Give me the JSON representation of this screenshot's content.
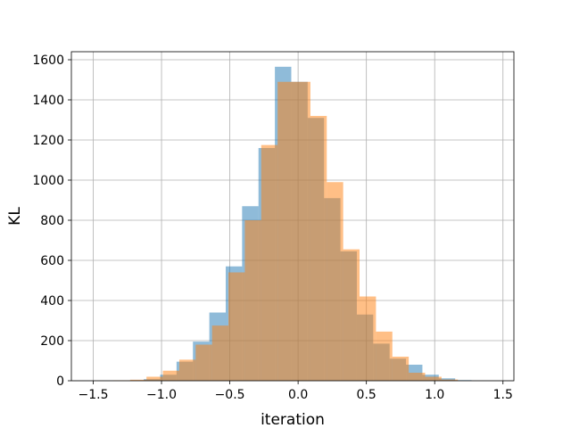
{
  "chart_data": {
    "type": "bar",
    "title": "",
    "xlabel": "iteration",
    "ylabel": "KL",
    "xlim": [
      -1.66,
      1.58
    ],
    "ylim": [
      0,
      1640
    ],
    "xticks": [
      -1.5,
      -1.0,
      -0.5,
      0.0,
      0.5,
      1.0,
      1.5
    ],
    "xtick_labels": [
      "−1.5",
      "−1.0",
      "−0.5",
      "0.0",
      "0.5",
      "1.0",
      "1.5"
    ],
    "yticks": [
      0,
      200,
      400,
      600,
      800,
      1000,
      1200,
      1400,
      1600
    ],
    "ytick_labels": [
      "0",
      "200",
      "400",
      "600",
      "800",
      "1000",
      "1200",
      "1400",
      "1600"
    ],
    "grid": true,
    "series": [
      {
        "color": "#1f77b4",
        "opacity": 0.5,
        "bins": [
          {
            "x0": -1.25,
            "x1": -1.13,
            "v": 1
          },
          {
            "x0": -1.13,
            "x1": -1.01,
            "v": 8
          },
          {
            "x0": -1.01,
            "x1": -0.89,
            "v": 30
          },
          {
            "x0": -0.89,
            "x1": -0.77,
            "v": 95
          },
          {
            "x0": -0.77,
            "x1": -0.65,
            "v": 195
          },
          {
            "x0": -0.65,
            "x1": -0.53,
            "v": 340
          },
          {
            "x0": -0.53,
            "x1": -0.41,
            "v": 570
          },
          {
            "x0": -0.41,
            "x1": -0.29,
            "v": 870
          },
          {
            "x0": -0.29,
            "x1": -0.17,
            "v": 1160
          },
          {
            "x0": -0.17,
            "x1": -0.05,
            "v": 1565
          },
          {
            "x0": -0.05,
            "x1": 0.07,
            "v": 1490
          },
          {
            "x0": 0.07,
            "x1": 0.19,
            "v": 1310
          },
          {
            "x0": 0.19,
            "x1": 0.31,
            "v": 910
          },
          {
            "x0": 0.31,
            "x1": 0.43,
            "v": 645
          },
          {
            "x0": 0.43,
            "x1": 0.55,
            "v": 330
          },
          {
            "x0": 0.55,
            "x1": 0.67,
            "v": 185
          },
          {
            "x0": 0.67,
            "x1": 0.79,
            "v": 110
          },
          {
            "x0": 0.79,
            "x1": 0.91,
            "v": 80
          },
          {
            "x0": 0.91,
            "x1": 1.03,
            "v": 30
          },
          {
            "x0": 1.03,
            "x1": 1.15,
            "v": 12
          },
          {
            "x0": 1.15,
            "x1": 1.27,
            "v": 3
          }
        ]
      },
      {
        "color": "#ff7f0e",
        "opacity": 0.5,
        "bins": [
          {
            "x0": -1.35,
            "x1": -1.23,
            "v": 2
          },
          {
            "x0": -1.23,
            "x1": -1.11,
            "v": 5
          },
          {
            "x0": -1.11,
            "x1": -0.99,
            "v": 20
          },
          {
            "x0": -0.99,
            "x1": -0.87,
            "v": 50
          },
          {
            "x0": -0.87,
            "x1": -0.75,
            "v": 105
          },
          {
            "x0": -0.75,
            "x1": -0.63,
            "v": 180
          },
          {
            "x0": -0.63,
            "x1": -0.51,
            "v": 275
          },
          {
            "x0": -0.51,
            "x1": -0.39,
            "v": 540
          },
          {
            "x0": -0.39,
            "x1": -0.27,
            "v": 800
          },
          {
            "x0": -0.27,
            "x1": -0.15,
            "v": 1175
          },
          {
            "x0": -0.15,
            "x1": -0.03,
            "v": 1490
          },
          {
            "x0": -0.03,
            "x1": 0.09,
            "v": 1490
          },
          {
            "x0": 0.09,
            "x1": 0.21,
            "v": 1320
          },
          {
            "x0": 0.21,
            "x1": 0.33,
            "v": 990
          },
          {
            "x0": 0.33,
            "x1": 0.45,
            "v": 655
          },
          {
            "x0": 0.45,
            "x1": 0.57,
            "v": 420
          },
          {
            "x0": 0.57,
            "x1": 0.69,
            "v": 245
          },
          {
            "x0": 0.69,
            "x1": 0.81,
            "v": 120
          },
          {
            "x0": 0.81,
            "x1": 0.93,
            "v": 40
          },
          {
            "x0": 0.93,
            "x1": 1.05,
            "v": 20
          },
          {
            "x0": 1.05,
            "x1": 1.17,
            "v": 6
          }
        ]
      }
    ]
  }
}
